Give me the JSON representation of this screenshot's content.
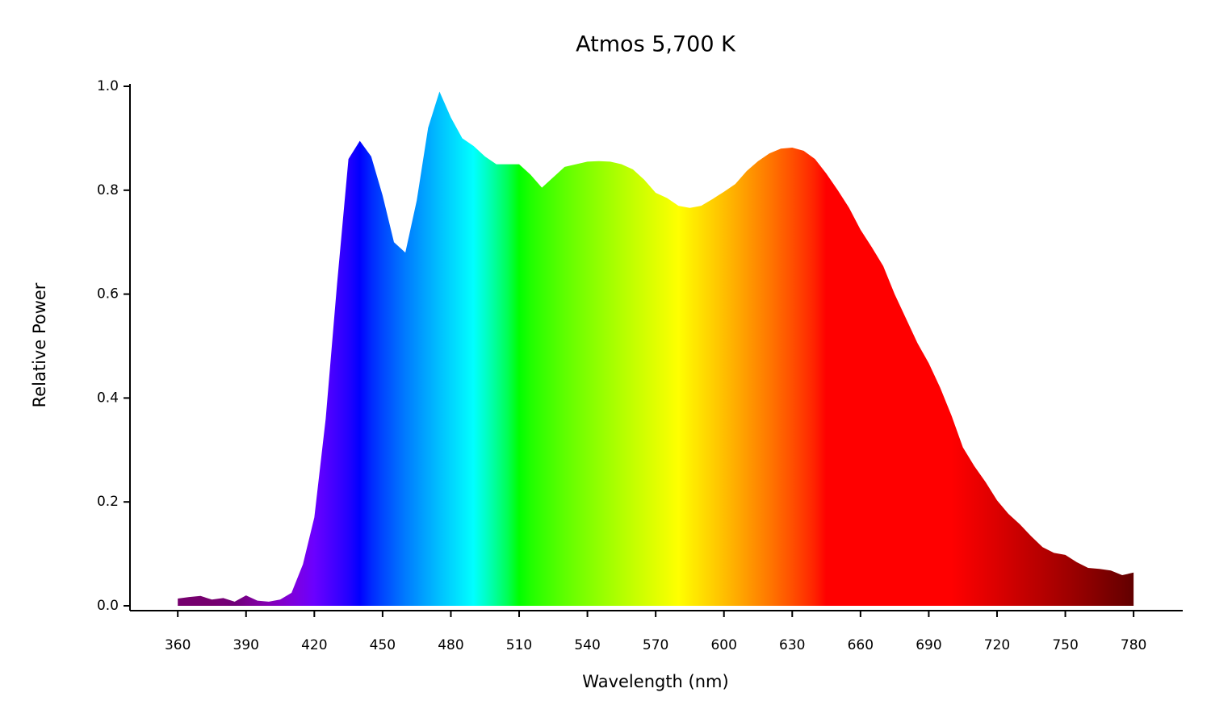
{
  "chart_data": {
    "type": "spectrum-area",
    "title": "Atmos 5,700 K",
    "xlabel": "Wavelength (nm)",
    "ylabel": "Relative Power",
    "x": [
      360,
      365,
      370,
      375,
      380,
      385,
      390,
      395,
      400,
      405,
      410,
      415,
      420,
      425,
      430,
      435,
      440,
      445,
      450,
      455,
      460,
      465,
      470,
      475,
      480,
      485,
      490,
      495,
      500,
      505,
      510,
      515,
      520,
      525,
      530,
      535,
      540,
      545,
      550,
      555,
      560,
      565,
      570,
      575,
      580,
      585,
      590,
      595,
      600,
      605,
      610,
      615,
      620,
      625,
      630,
      635,
      640,
      645,
      650,
      655,
      660,
      665,
      670,
      675,
      680,
      685,
      690,
      695,
      700,
      705,
      710,
      715,
      720,
      725,
      730,
      735,
      740,
      745,
      750,
      755,
      760,
      765,
      770,
      775,
      780
    ],
    "values": [
      0.014,
      0.017,
      0.019,
      0.012,
      0.015,
      0.008,
      0.02,
      0.01,
      0.008,
      0.012,
      0.025,
      0.08,
      0.17,
      0.36,
      0.62,
      0.86,
      0.895,
      0.865,
      0.79,
      0.7,
      0.68,
      0.78,
      0.92,
      0.99,
      0.94,
      0.9,
      0.885,
      0.865,
      0.85,
      0.85,
      0.85,
      0.83,
      0.805,
      0.825,
      0.845,
      0.85,
      0.855,
      0.856,
      0.855,
      0.85,
      0.84,
      0.82,
      0.795,
      0.785,
      0.77,
      0.766,
      0.77,
      0.783,
      0.797,
      0.812,
      0.837,
      0.856,
      0.871,
      0.88,
      0.882,
      0.876,
      0.86,
      0.832,
      0.8,
      0.766,
      0.724,
      0.69,
      0.654,
      0.6,
      0.553,
      0.506,
      0.467,
      0.42,
      0.366,
      0.305,
      0.269,
      0.238,
      0.203,
      0.177,
      0.157,
      0.134,
      0.113,
      0.102,
      0.098,
      0.084,
      0.073,
      0.071,
      0.068,
      0.059,
      0.064
    ],
    "xlim": [
      339,
      801.6
    ],
    "ylim": [
      -0.0093,
      1.0
    ],
    "xticks": [
      360,
      390,
      420,
      450,
      480,
      510,
      540,
      570,
      600,
      630,
      660,
      690,
      720,
      750,
      780
    ],
    "yticks": [
      {
        "value": 0,
        "label": "0.0"
      },
      {
        "value": 0.2,
        "label": "0.2"
      },
      {
        "value": 0.4,
        "label": "0.4"
      },
      {
        "value": 0.6,
        "label": "0.6"
      },
      {
        "value": 0.8,
        "label": "0.8"
      },
      {
        "value": 1.0,
        "label": "1.0"
      }
    ],
    "grid": false
  }
}
